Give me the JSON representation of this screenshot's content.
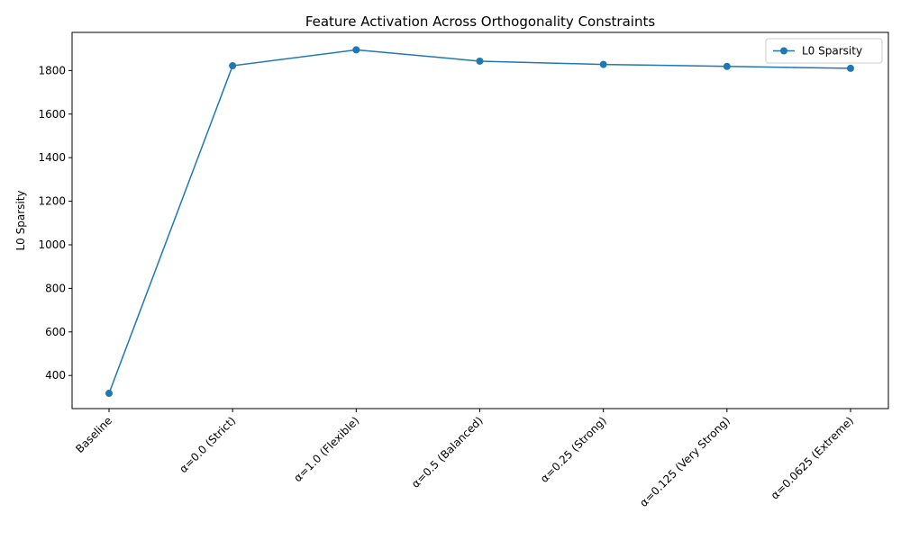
{
  "chart_data": {
    "type": "line",
    "title": "Feature Activation Across Orthogonality Constraints",
    "xlabel": "",
    "ylabel": "L0 Sparsity",
    "categories": [
      "Baseline",
      "α=0.0 (Strict)",
      "α=1.0 (Flexible)",
      "α=0.5 (Balanced)",
      "α=0.25 (Strong)",
      "α=0.125 (Very Strong)",
      "α=0.0625 (Extreme)"
    ],
    "series": [
      {
        "name": "L0 Sparsity",
        "values": [
          318,
          1822,
          1895,
          1843,
          1828,
          1819,
          1810
        ],
        "color": "#1f77b4",
        "marker": "circle"
      }
    ],
    "ylim": [
      248,
      1975
    ],
    "yticks": [
      400,
      600,
      800,
      1000,
      1200,
      1400,
      1600,
      1800
    ],
    "grid": false,
    "legend": "top-right"
  }
}
